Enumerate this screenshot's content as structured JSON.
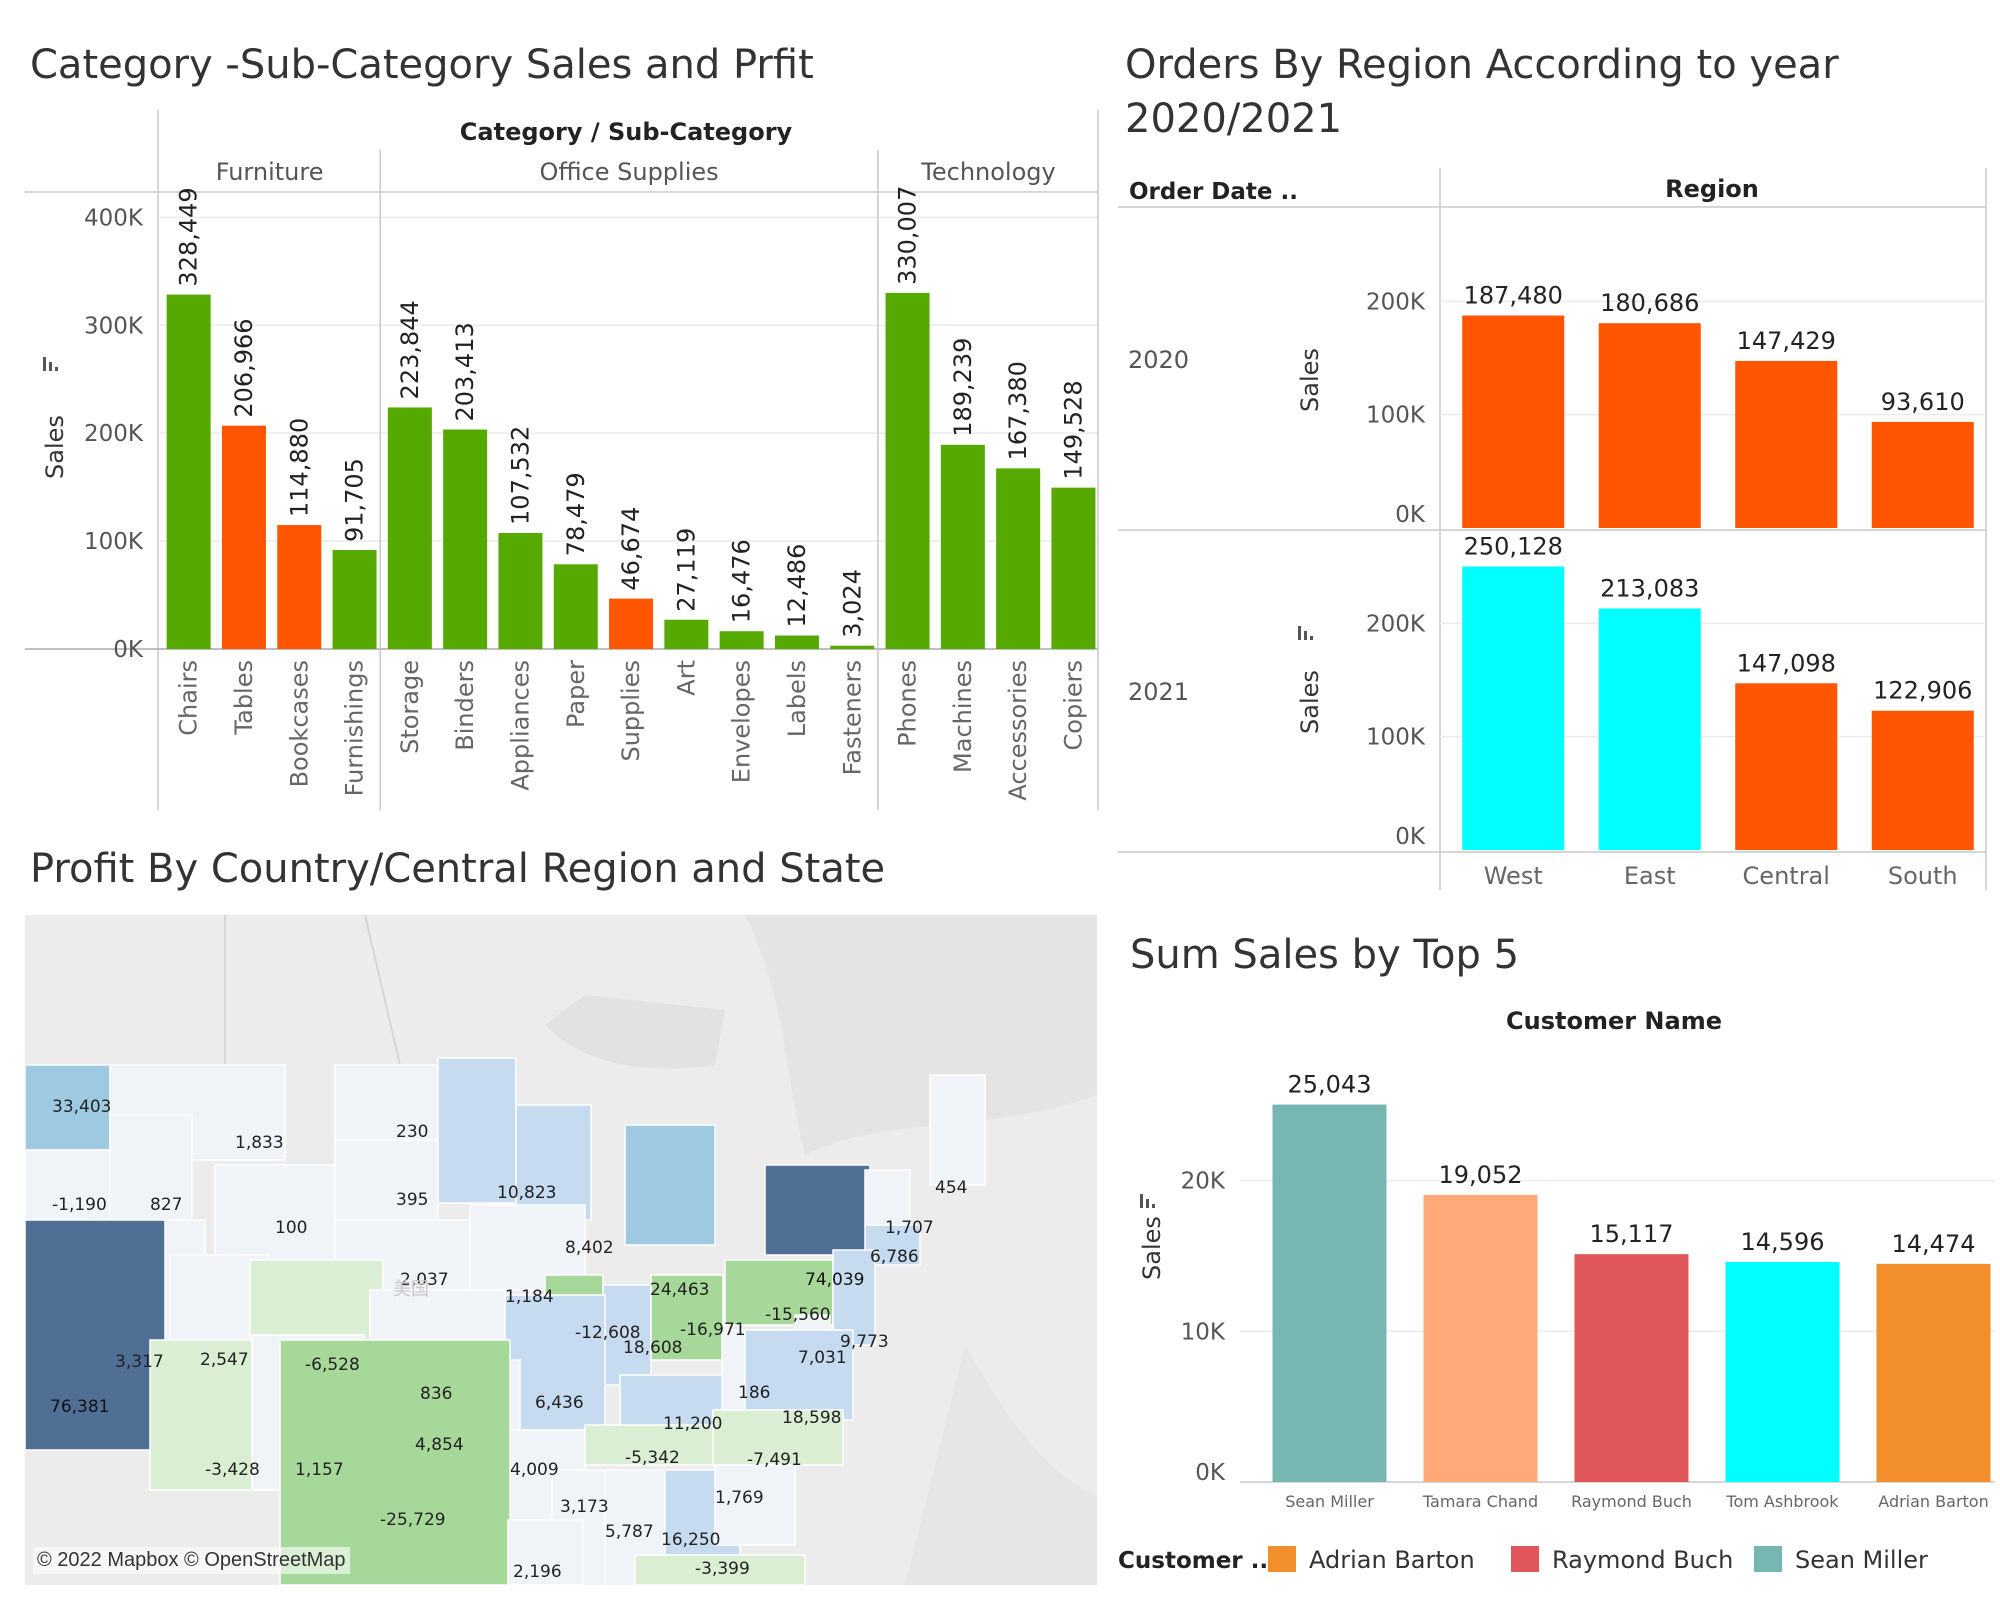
{
  "colors": {
    "green": "#55a900",
    "orange_red": "#ff5500",
    "cyan": "#00ffff",
    "teal": "#76b7b2",
    "salmon": "#ffa978",
    "red": "#e15759",
    "orange": "#f28e2b",
    "map_light": "#f0f4f8",
    "map_blue_light": "#c6dbef",
    "map_blue_mid": "#9ecae1",
    "map_blue_dark": "#4f6f95",
    "map_green_light": "#d9eed2",
    "map_green_mid": "#a6d89a",
    "gridline": "#ebebeb"
  },
  "chart_data": [
    {
      "type": "bar",
      "title": "Category -Sub-Category Sales and Prfit",
      "header": "Category  /  Sub-Category",
      "ylabel": "Sales",
      "ylim": [
        0,
        430000
      ],
      "yticks": [
        {
          "value": 0,
          "label": "0K"
        },
        {
          "value": 100000,
          "label": "100K"
        },
        {
          "value": 200000,
          "label": "200K"
        },
        {
          "value": 300000,
          "label": "300K"
        },
        {
          "value": 400000,
          "label": "400K"
        }
      ],
      "groups": [
        {
          "name": "Furniture",
          "items": [
            {
              "name": "Chairs",
              "value": 328449,
              "label": "328,449",
              "color": "green"
            },
            {
              "name": "Tables",
              "value": 206966,
              "label": "206,966",
              "color": "orange_red"
            },
            {
              "name": "Bookcases",
              "value": 114880,
              "label": "114,880",
              "color": "orange_red"
            },
            {
              "name": "Furnishings",
              "value": 91705,
              "label": "91,705",
              "color": "green"
            }
          ]
        },
        {
          "name": "Office Supplies",
          "items": [
            {
              "name": "Storage",
              "value": 223844,
              "label": "223,844",
              "color": "green"
            },
            {
              "name": "Binders",
              "value": 203413,
              "label": "203,413",
              "color": "green"
            },
            {
              "name": "Appliances",
              "value": 107532,
              "label": "107,532",
              "color": "green"
            },
            {
              "name": "Paper",
              "value": 78479,
              "label": "78,479",
              "color": "green"
            },
            {
              "name": "Supplies",
              "value": 46674,
              "label": "46,674",
              "color": "orange_red"
            },
            {
              "name": "Art",
              "value": 27119,
              "label": "27,119",
              "color": "green"
            },
            {
              "name": "Envelopes",
              "value": 16476,
              "label": "16,476",
              "color": "green"
            },
            {
              "name": "Labels",
              "value": 12486,
              "label": "12,486",
              "color": "green"
            },
            {
              "name": "Fasteners",
              "value": 3024,
              "label": "3,024",
              "color": "green"
            }
          ]
        },
        {
          "name": "Technology",
          "items": [
            {
              "name": "Phones",
              "value": 330007,
              "label": "330,007",
              "color": "green"
            },
            {
              "name": "Machines",
              "value": 189239,
              "label": "189,239",
              "color": "green"
            },
            {
              "name": "Accessories",
              "value": 167380,
              "label": "167,380",
              "color": "green"
            },
            {
              "name": "Copiers",
              "value": 149528,
              "label": "149,528",
              "color": "green"
            }
          ]
        }
      ]
    },
    {
      "type": "bar",
      "title": "Orders By Region According to year 2020/2021",
      "header_left": "Order Date ..",
      "header": "Region",
      "ylabel": "Sales",
      "ylim": [
        0,
        270000
      ],
      "yticks": [
        {
          "value": 0,
          "label": "0K"
        },
        {
          "value": 100000,
          "label": "100K"
        },
        {
          "value": 200000,
          "label": "200K"
        }
      ],
      "categories": [
        "West",
        "East",
        "Central",
        "South"
      ],
      "series": [
        {
          "name": "2020",
          "values": [
            187480,
            180686,
            147429,
            93610
          ],
          "labels": [
            "187,480",
            "180,686",
            "147,429",
            "93,610"
          ],
          "colors": [
            "orange_red",
            "orange_red",
            "orange_red",
            "orange_red"
          ]
        },
        {
          "name": "2021",
          "values": [
            250128,
            213083,
            147098,
            122906
          ],
          "labels": [
            "250,128",
            "213,083",
            "147,098",
            "122,906"
          ],
          "colors": [
            "cyan",
            "cyan",
            "orange_red",
            "orange_red"
          ]
        }
      ]
    },
    {
      "type": "bar",
      "title": "Sum Sales  by Top 5",
      "header": "Customer Name",
      "ylabel": "Sales",
      "ylim": [
        0,
        28000
      ],
      "yticks": [
        {
          "value": 0,
          "label": "0K"
        },
        {
          "value": 10000,
          "label": "10K"
        },
        {
          "value": 20000,
          "label": "20K"
        }
      ],
      "categories": [
        "Sean Miller",
        "Tamara Chand",
        "Raymond Buch",
        "Tom Ashbrook",
        "Adrian Barton"
      ],
      "values": [
        25043,
        19052,
        15117,
        14596,
        14474
      ],
      "labels": [
        "25,043",
        "19,052",
        "15,117",
        "14,596",
        "14,474"
      ],
      "colors": [
        "teal",
        "salmon",
        "red",
        "cyan",
        "orange"
      ],
      "legend_title": "Customer ..",
      "legend": [
        {
          "name": "Adrian Barton",
          "color": "orange"
        },
        {
          "name": "Raymond Buch",
          "color": "red"
        },
        {
          "name": "Sean Miller",
          "color": "teal"
        }
      ]
    }
  ],
  "map": {
    "title": "Profit By Country/Central Region and State",
    "attribution": "© 2022 Mapbox © OpenStreetMap",
    "watermark": "美国",
    "states": [
      {
        "id": "WA",
        "value": "33,403",
        "color": "map_blue_mid"
      },
      {
        "id": "MT",
        "value": "1,833",
        "color": "map_light"
      },
      {
        "id": "ND",
        "value": "230",
        "color": "map_light"
      },
      {
        "id": "MN",
        "value": "10,823",
        "color": "map_blue_light"
      },
      {
        "id": "ME",
        "value": "454",
        "color": "map_light"
      },
      {
        "id": "OR",
        "value": "-1,190",
        "color": "map_light"
      },
      {
        "id": "ID",
        "value": "827",
        "color": "map_light"
      },
      {
        "id": "WY",
        "value": "100",
        "color": "map_light"
      },
      {
        "id": "SD",
        "value": "395",
        "color": "map_light"
      },
      {
        "id": "WI",
        "value": "8,402",
        "color": "map_blue_light"
      },
      {
        "id": "MI",
        "value": "24,463",
        "color": "map_blue_mid"
      },
      {
        "id": "NY",
        "value": "74,039",
        "color": "map_blue_dark"
      },
      {
        "id": "VT",
        "value": "1,707",
        "color": "map_light"
      },
      {
        "id": "MA",
        "value": "6,786",
        "color": "map_blue_light"
      },
      {
        "id": "NE",
        "value": "2,037",
        "color": "map_light"
      },
      {
        "id": "IA",
        "value": "1,184",
        "color": "map_light"
      },
      {
        "id": "IL",
        "value": "-12,608",
        "color": "map_green_mid"
      },
      {
        "id": "IN",
        "value": "18,608",
        "color": "map_blue_light"
      },
      {
        "id": "OH",
        "value": "-16,971",
        "color": "map_green_mid"
      },
      {
        "id": "PA",
        "value": "-15,560",
        "color": "map_green_mid"
      },
      {
        "id": "NJ",
        "value": "9,773",
        "color": "map_blue_light"
      },
      {
        "id": "DE",
        "value": "7,031",
        "color": "map_light"
      },
      {
        "id": "NV",
        "value": "3,317",
        "color": "map_light"
      },
      {
        "id": "UT",
        "value": "2,547",
        "color": "map_light"
      },
      {
        "id": "CO",
        "value": "-6,528",
        "color": "map_green_light"
      },
      {
        "id": "KS",
        "value": "836",
        "color": "map_light"
      },
      {
        "id": "MO",
        "value": "6,436",
        "color": "map_blue_light"
      },
      {
        "id": "KY",
        "value": "11,200",
        "color": "map_blue_light"
      },
      {
        "id": "WV",
        "value": "186",
        "color": "map_light"
      },
      {
        "id": "VA",
        "value": "18,598",
        "color": "map_blue_light"
      },
      {
        "id": "CA",
        "value": "76,381",
        "color": "map_blue_dark"
      },
      {
        "id": "AZ",
        "value": "-3,428",
        "color": "map_green_light"
      },
      {
        "id": "NM",
        "value": "1,157",
        "color": "map_light"
      },
      {
        "id": "OK",
        "value": "4,854",
        "color": "map_light"
      },
      {
        "id": "AR",
        "value": "4,009",
        "color": "map_light"
      },
      {
        "id": "TN",
        "value": "-5,342",
        "color": "map_green_light"
      },
      {
        "id": "NC",
        "value": "-7,491",
        "color": "map_green_light"
      },
      {
        "id": "TX",
        "value": "-25,729",
        "color": "map_green_mid"
      },
      {
        "id": "MS",
        "value": "3,173",
        "color": "map_light"
      },
      {
        "id": "AL",
        "value": "5,787",
        "color": "map_light"
      },
      {
        "id": "GA",
        "value": "16,250",
        "color": "map_blue_light"
      },
      {
        "id": "SC",
        "value": "1,769",
        "color": "map_light"
      },
      {
        "id": "LA",
        "value": "2,196",
        "color": "map_light"
      },
      {
        "id": "FL",
        "value": "-3,399",
        "color": "map_green_light"
      }
    ]
  }
}
